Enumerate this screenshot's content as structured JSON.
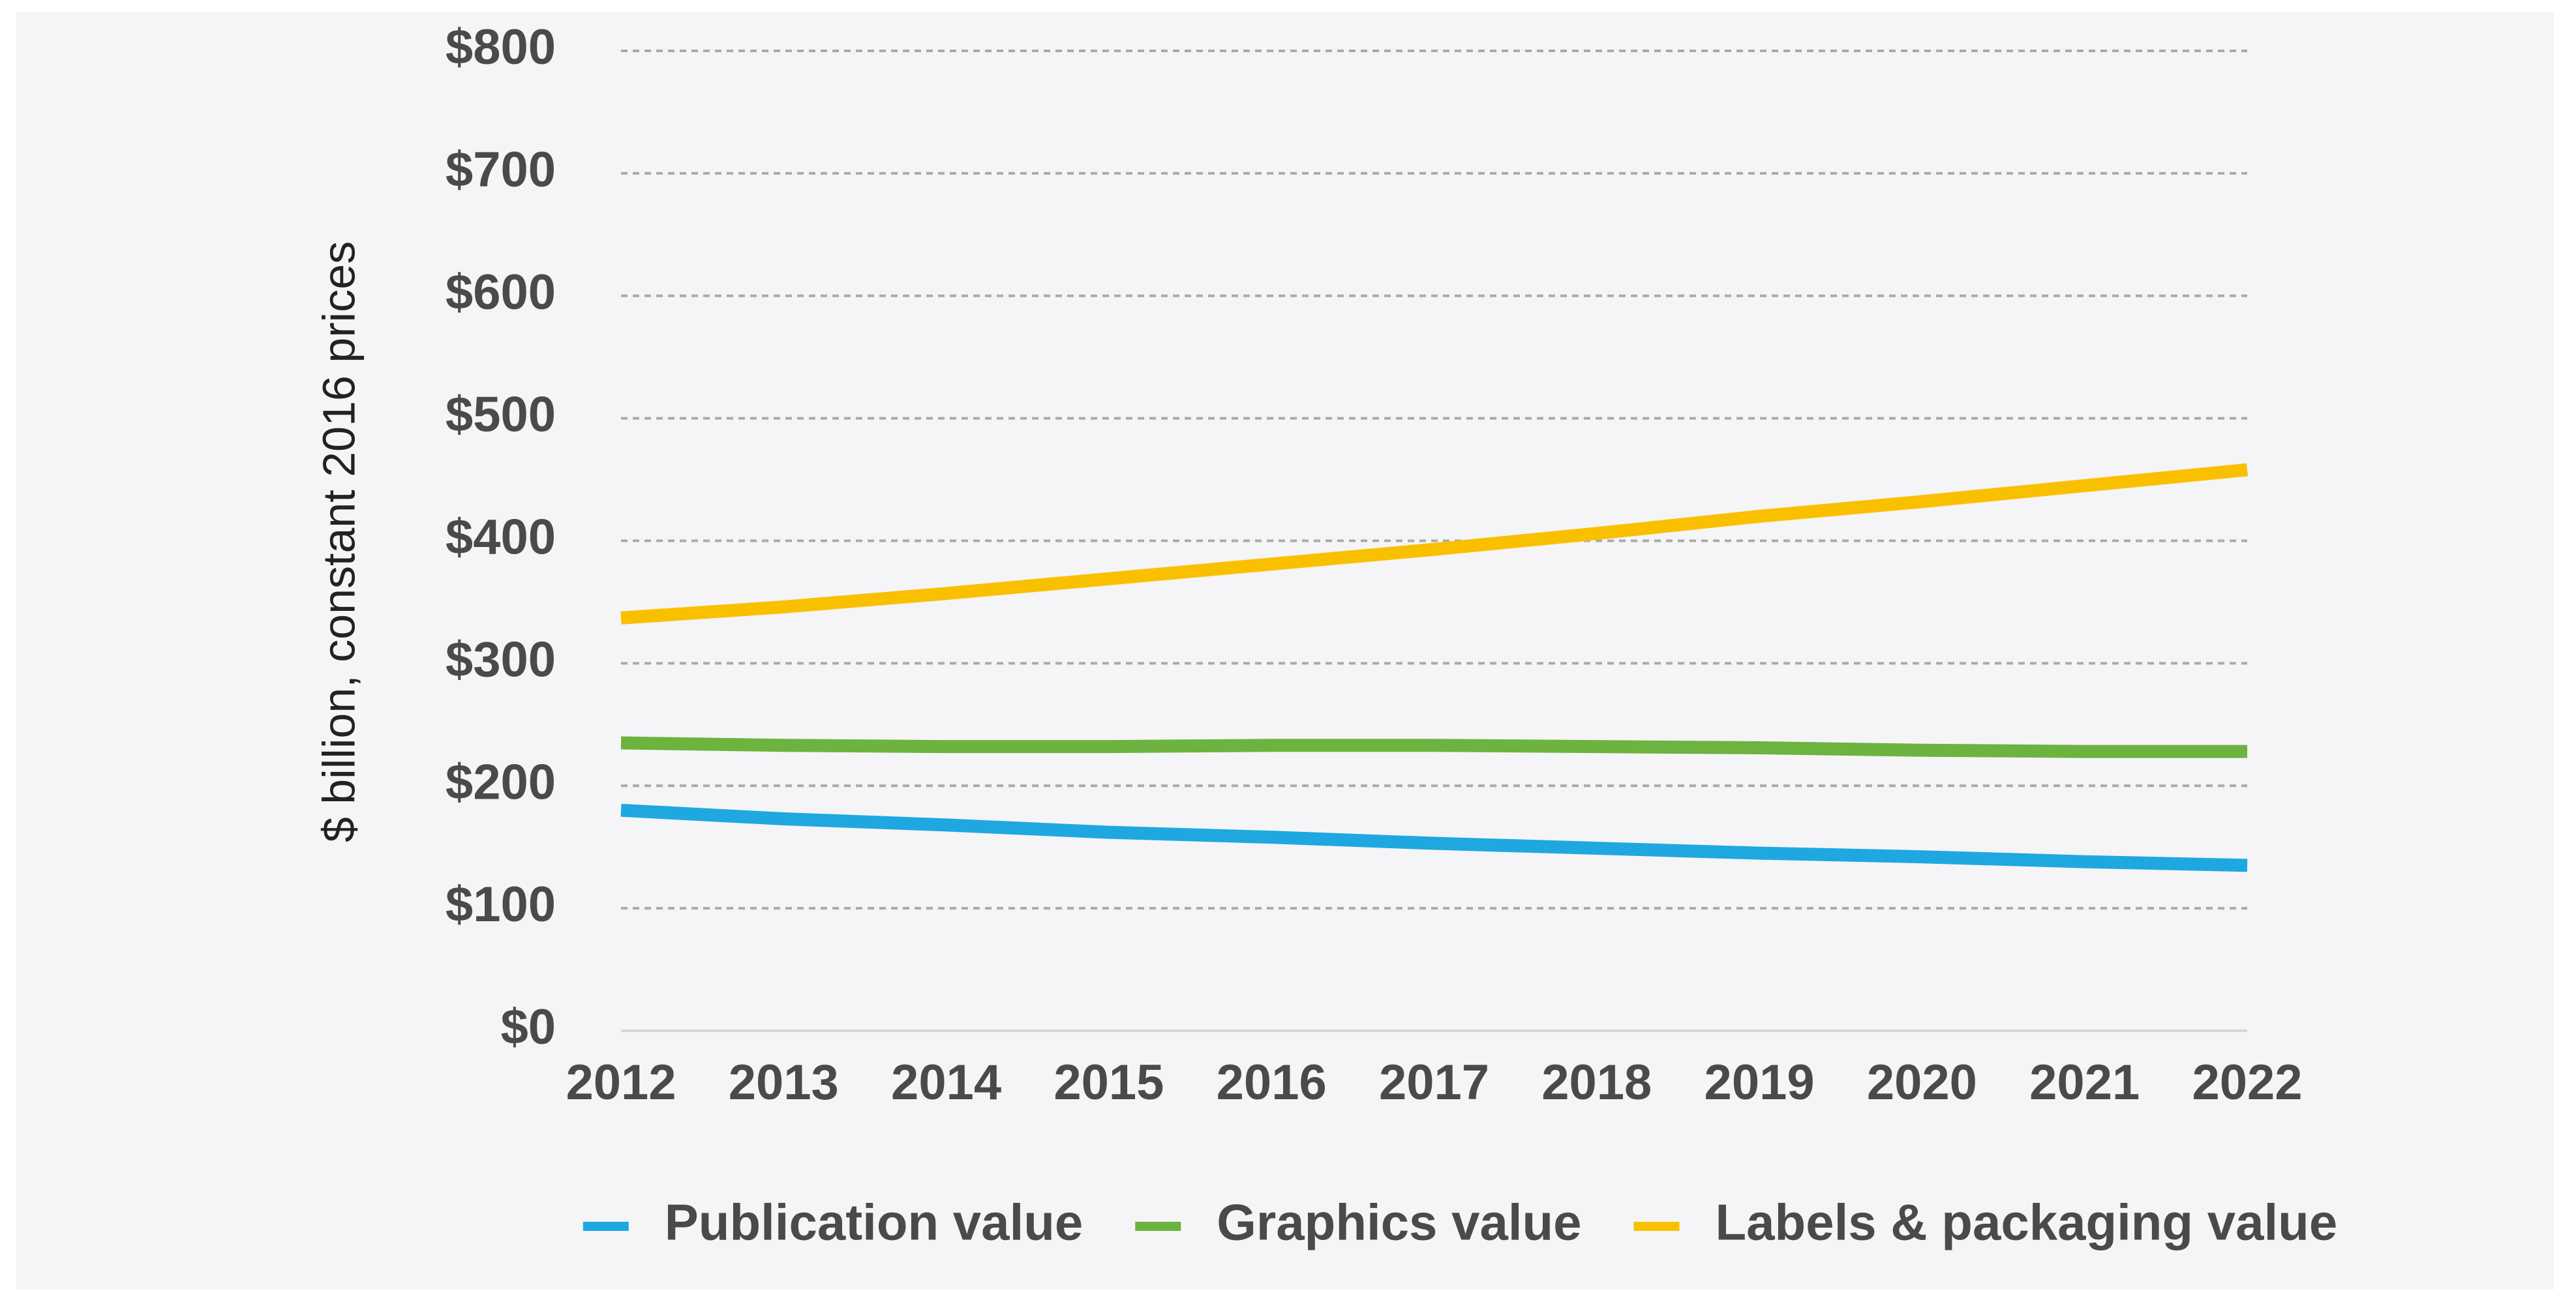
{
  "chart_data": {
    "type": "line",
    "y_label": "$ billion, constant 2016 prices",
    "categories": [
      "2012",
      "2013",
      "2014",
      "2015",
      "2016",
      "2017",
      "2018",
      "2019",
      "2020",
      "2021",
      "2022"
    ],
    "series": [
      {
        "name": "Publication value",
        "color": "#1fa8e0",
        "values": [
          180,
          173,
          168,
          162,
          158,
          153,
          149,
          145,
          142,
          138,
          135
        ]
      },
      {
        "name": "Graphics value",
        "color": "#6db33f",
        "values": [
          235,
          233,
          232,
          232,
          233,
          233,
          232,
          231,
          229,
          228,
          228
        ]
      },
      {
        "name": "Labels & packaging value",
        "color": "#f9c000",
        "values": [
          337,
          346,
          357,
          369,
          381,
          393,
          406,
          420,
          432,
          445,
          458
        ]
      }
    ],
    "ylim": [
      0,
      800
    ],
    "yticks": [
      {
        "value": 0,
        "label": "$0"
      },
      {
        "value": 100,
        "label": "$100"
      },
      {
        "value": 200,
        "label": "$200"
      },
      {
        "value": 300,
        "label": "$300"
      },
      {
        "value": 400,
        "label": "$400"
      },
      {
        "value": 500,
        "label": "$500"
      },
      {
        "value": 600,
        "label": "$600"
      },
      {
        "value": 700,
        "label": "$700"
      },
      {
        "value": 800,
        "label": "$800"
      }
    ],
    "grid": true,
    "legend": "bottom"
  }
}
